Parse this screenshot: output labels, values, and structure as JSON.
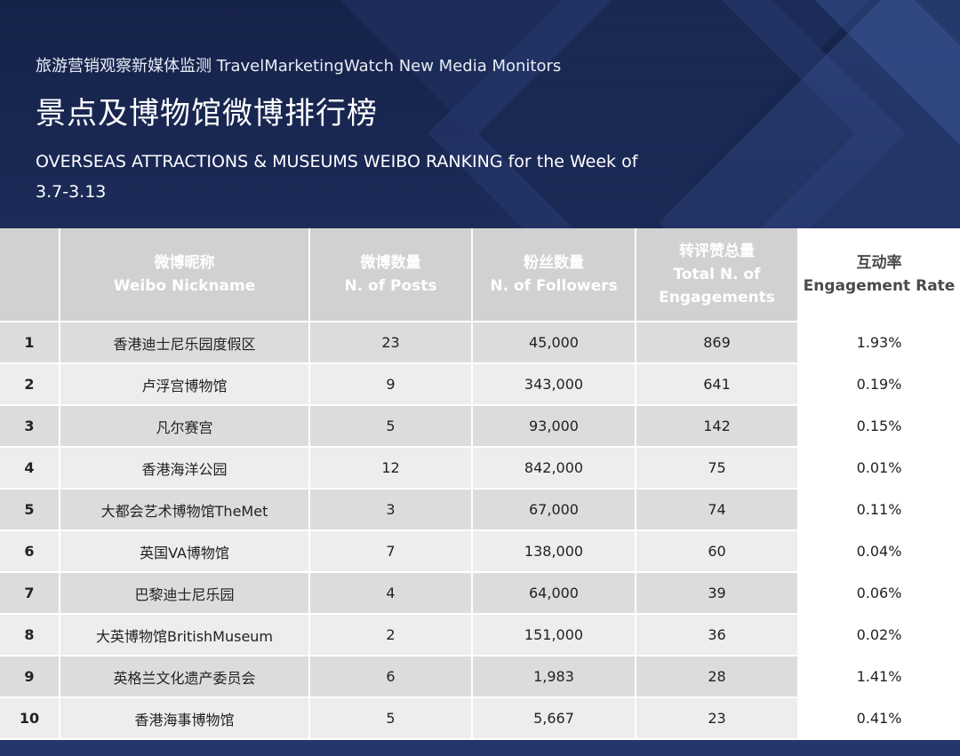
{
  "header": {
    "subtitle": "旅游营销观察新媒体监测 TravelMarketingWatch New Media Monitors",
    "title": "景点及博物馆微博排行榜",
    "en_title": "OVERSEAS ATTRACTIONS & MUSEUMS WEIBO RANKING for the Week of",
    "week": "3.7-3.13"
  },
  "colors": {
    "top_rank": "#e17a2a",
    "background": "#1c2b55",
    "header_cell": "#d1d1d1"
  },
  "table": {
    "columns": [
      {
        "zh": "",
        "en": ""
      },
      {
        "zh": "微博昵称",
        "en": "Weibo Nickname"
      },
      {
        "zh": "微博数量",
        "en": "N. of Posts"
      },
      {
        "zh": "粉丝数量",
        "en": "N. of Followers"
      },
      {
        "zh": "转评赞总量",
        "en": "Total N. of Engagements"
      },
      {
        "zh": "互动率",
        "en": "Engagement Rate"
      }
    ],
    "rows": [
      {
        "rank": "1",
        "name": "香港迪士尼乐园度假区",
        "posts": "23",
        "followers": "45,000",
        "engagements": "869",
        "rate": "1.93%"
      },
      {
        "rank": "2",
        "name": "卢浮宫博物馆",
        "posts": "9",
        "followers": "343,000",
        "engagements": "641",
        "rate": "0.19%"
      },
      {
        "rank": "3",
        "name": "凡尔赛宫",
        "posts": "5",
        "followers": "93,000",
        "engagements": "142",
        "rate": "0.15%"
      },
      {
        "rank": "4",
        "name": "香港海洋公园",
        "posts": "12",
        "followers": "842,000",
        "engagements": "75",
        "rate": "0.01%"
      },
      {
        "rank": "5",
        "name": "大都会艺术博物馆TheMet",
        "posts": "3",
        "followers": "67,000",
        "engagements": "74",
        "rate": "0.11%"
      },
      {
        "rank": "6",
        "name": "英国VA博物馆",
        "posts": "7",
        "followers": "138,000",
        "engagements": "60",
        "rate": "0.04%"
      },
      {
        "rank": "7",
        "name": "巴黎迪士尼乐园",
        "posts": "4",
        "followers": "64,000",
        "engagements": "39",
        "rate": "0.06%"
      },
      {
        "rank": "8",
        "name": "大英博物馆BritishMuseum",
        "posts": "2",
        "followers": "151,000",
        "engagements": "36",
        "rate": "0.02%"
      },
      {
        "rank": "9",
        "name": "英格兰文化遗产委员会",
        "posts": "6",
        "followers": "1,983",
        "engagements": "28",
        "rate": "1.41%"
      },
      {
        "rank": "10",
        "name": "香港海事博物馆",
        "posts": "5",
        "followers": "5,667",
        "engagements": "23",
        "rate": "0.41%"
      }
    ]
  }
}
